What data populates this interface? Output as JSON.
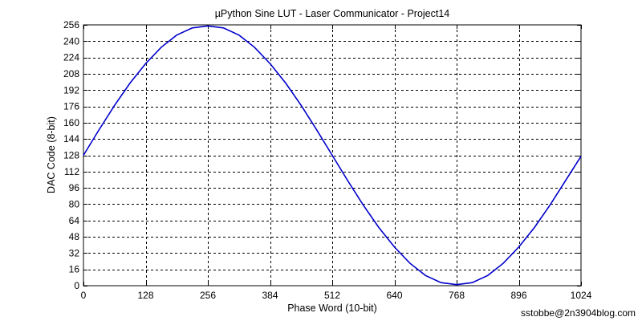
{
  "chart_data": {
    "type": "line",
    "title": "µPython Sine LUT - Laser Communicator - Project14",
    "xlabel": "Phase Word (10-bit)",
    "ylabel": "DAC Code (8-bit)",
    "xlim": [
      0,
      1024
    ],
    "ylim": [
      0,
      256
    ],
    "xticks": [
      0,
      128,
      256,
      384,
      512,
      640,
      768,
      896,
      1024
    ],
    "yticks": [
      0,
      16,
      32,
      48,
      64,
      80,
      96,
      112,
      128,
      144,
      160,
      176,
      192,
      208,
      224,
      240,
      256
    ],
    "grid": true,
    "line_color": "#0000cc",
    "series": [
      {
        "x": [
          0,
          32,
          64,
          96,
          128,
          160,
          192,
          224,
          256,
          288,
          320,
          352,
          384,
          416,
          448,
          480,
          512,
          544,
          576,
          608,
          640,
          672,
          704,
          736,
          768,
          800,
          832,
          864,
          896,
          928,
          960,
          992,
          1024
        ],
        "values": [
          128,
          153,
          177,
          199,
          218,
          234,
          246,
          253,
          255,
          253,
          246,
          234,
          218,
          199,
          177,
          153,
          128,
          103,
          79,
          57,
          38,
          22,
          10,
          3,
          1,
          3,
          10,
          22,
          38,
          57,
          79,
          103,
          127
        ]
      }
    ]
  },
  "credit": "sstobbe@2n3904blog.com"
}
